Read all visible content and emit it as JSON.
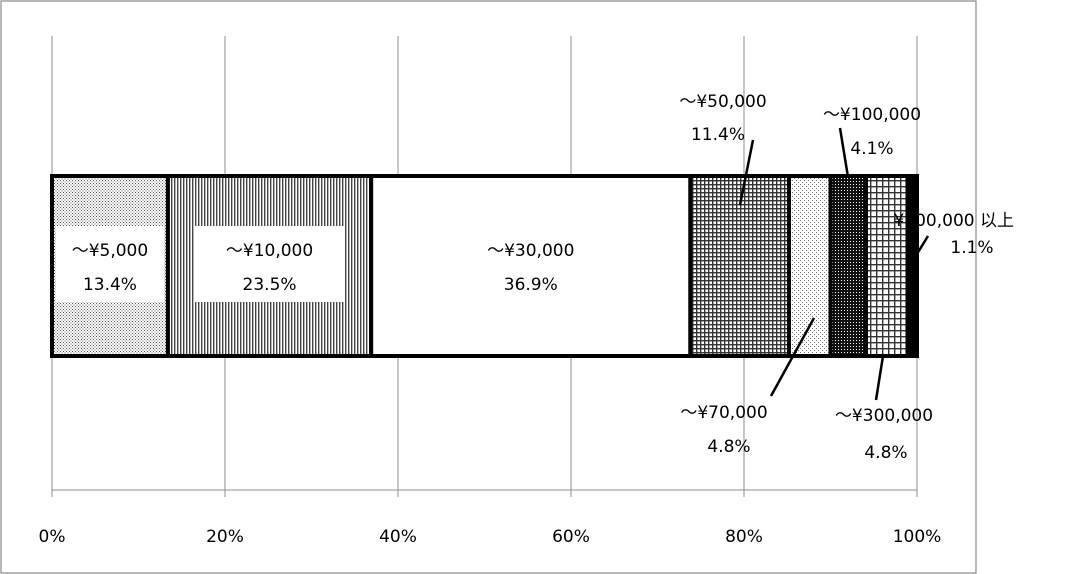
{
  "chart_data": {
    "type": "bar",
    "orientation": "horizontal",
    "stacked": "percent",
    "xlim": [
      0,
      100
    ],
    "x_ticks": [
      "0%",
      "20%",
      "40%",
      "60%",
      "80%",
      "100%"
    ],
    "grid": true,
    "series": [
      {
        "name": "～¥5,000",
        "value": 13.4,
        "value_label": "13.4%",
        "pattern": "fine-dots"
      },
      {
        "name": "～¥10,000",
        "value": 23.5,
        "value_label": "23.5%",
        "pattern": "vertical-lines"
      },
      {
        "name": "～¥30,000",
        "value": 36.9,
        "value_label": "36.9%",
        "pattern": "none"
      },
      {
        "name": "～¥50,000",
        "value": 11.4,
        "value_label": "11.4%",
        "pattern": "grid"
      },
      {
        "name": "～¥70,000",
        "value": 4.8,
        "value_label": "4.8%",
        "pattern": "sparse-dots"
      },
      {
        "name": "～¥100,000",
        "value": 4.1,
        "value_label": "4.1%",
        "pattern": "dense-dark"
      },
      {
        "name": "～¥300,000",
        "value": 4.8,
        "value_label": "4.8%",
        "pattern": "coarse-grid"
      },
      {
        "name": "¥300,000 以上",
        "value": 1.1,
        "value_label": "1.1%",
        "pattern": "solid-black"
      }
    ]
  }
}
